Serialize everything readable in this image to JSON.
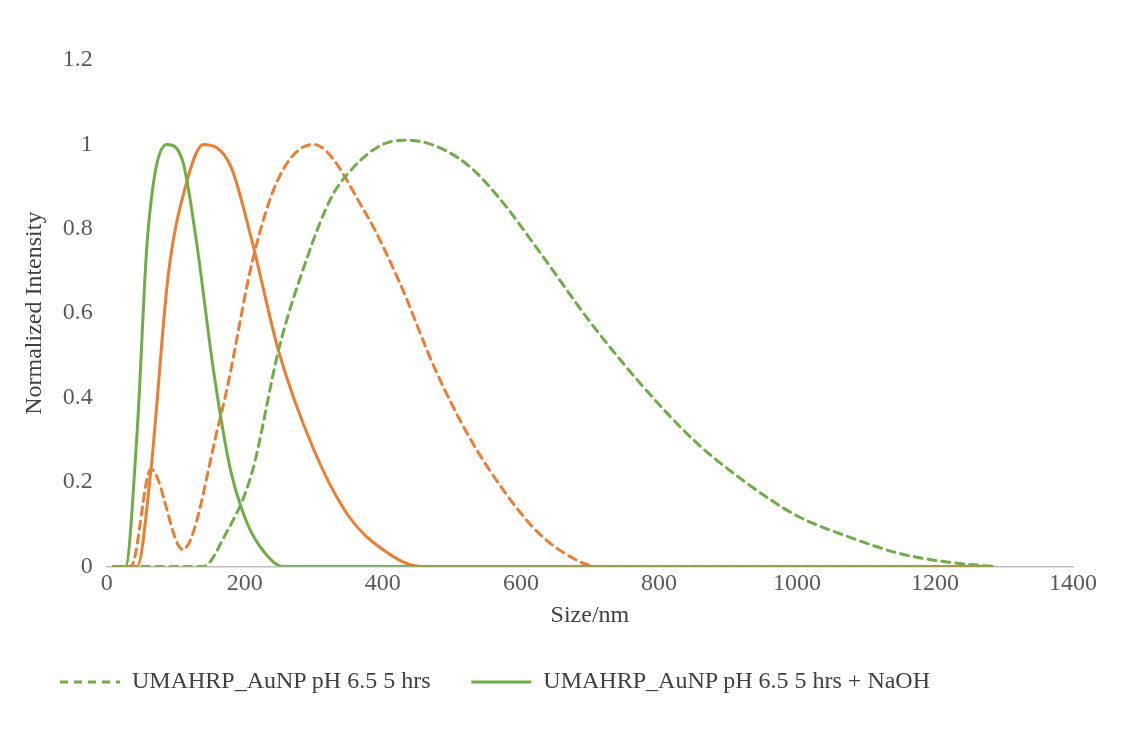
{
  "chart_data": {
    "type": "line",
    "xlabel": "Size/nm",
    "ylabel": "Normalized Intensity",
    "xlim": [
      0,
      1400
    ],
    "xticks": [
      0,
      200,
      400,
      600,
      800,
      1000,
      1200,
      1400
    ],
    "ylim": [
      0,
      1.2
    ],
    "yticks": [
      0,
      0.2,
      0.4,
      0.6,
      0.8,
      1,
      1.2
    ],
    "grid": false,
    "legend": "bottom",
    "marker": "none",
    "series": [
      {
        "name": "UMAHRP_AuNP pH 6.5 5 hrs",
        "color": "#70ad47",
        "line_style": "dashed",
        "x": [
          10,
          100,
          140,
          170,
          210,
          250,
          290,
          324,
          360,
          400,
          430,
          470,
          524,
          570,
          625,
          700,
          775,
          850,
          925,
          1000,
          1075,
          1150,
          1220,
          1283
        ],
        "values": [
          0,
          0,
          0,
          0.07,
          0.22,
          0.52,
          0.73,
          0.87,
          0.95,
          1.0,
          1.01,
          1.0,
          0.95,
          0.87,
          0.75,
          0.58,
          0.43,
          0.3,
          0.2,
          0.12,
          0.07,
          0.03,
          0.01,
          0
        ]
      },
      {
        "name": "UMAHRP_AuNP pH 6.5 5 hrs + NaOH",
        "color": "#70ad47",
        "line_style": "solid",
        "x": [
          10,
          27,
          44,
          59,
          87,
          110,
          129,
          155,
          179,
          204,
          230,
          254,
          400,
          800,
          1283
        ],
        "values": [
          0,
          0,
          0.32,
          0.78,
          1.0,
          0.96,
          0.78,
          0.46,
          0.23,
          0.1,
          0.03,
          0,
          0,
          0,
          0
        ]
      },
      {
        "color": "#ed7d31",
        "line_style": "dashed",
        "x": [
          10,
          35,
          64,
          110,
          164,
          174,
          212,
          249,
          299,
          374,
          425,
          475,
          524,
          575,
          625,
          675,
          710,
          1000,
          1283
        ],
        "values": [
          0,
          0,
          0.23,
          0.04,
          0.35,
          0.42,
          0.73,
          0.92,
          1.0,
          0.84,
          0.67,
          0.47,
          0.31,
          0.18,
          0.08,
          0.02,
          0,
          0,
          0
        ]
      },
      {
        "color": "#ed7d31",
        "line_style": "solid",
        "x": [
          10,
          44,
          64,
          89,
          114,
          140,
          179,
          209,
          249,
          299,
          350,
          400,
          455,
          800,
          1283
        ],
        "values": [
          0,
          0,
          0.23,
          0.69,
          0.9,
          1.0,
          0.95,
          0.78,
          0.51,
          0.28,
          0.12,
          0.04,
          0,
          0,
          0
        ]
      }
    ]
  }
}
